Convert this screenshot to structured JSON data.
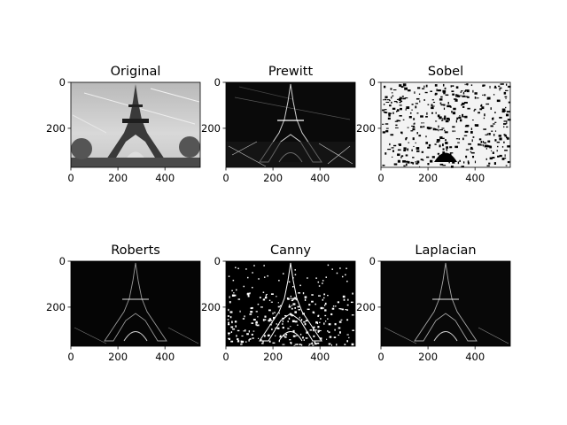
{
  "figure": {
    "background": "#ffffff",
    "axis_color": "#000000"
  },
  "chart_data": [
    {
      "type": "image",
      "title": "Original",
      "x_ticks": [
        0,
        200,
        400
      ],
      "y_ticks": [
        0,
        200
      ],
      "xlim": [
        0,
        550
      ],
      "ylim": [
        370,
        0
      ],
      "style": "grayscale-photo"
    },
    {
      "type": "image",
      "title": "Prewitt",
      "x_ticks": [
        0,
        200,
        400
      ],
      "y_ticks": [
        0,
        200
      ],
      "xlim": [
        0,
        550
      ],
      "ylim": [
        370,
        0
      ],
      "style": "dark-edges"
    },
    {
      "type": "image",
      "title": "Sobel",
      "x_ticks": [
        0,
        200,
        400
      ],
      "y_ticks": [
        0,
        200
      ],
      "xlim": [
        0,
        550
      ],
      "ylim": [
        370,
        0
      ],
      "style": "dense-white-edges"
    },
    {
      "type": "image",
      "title": "Roberts",
      "x_ticks": [
        0,
        200,
        400
      ],
      "y_ticks": [
        0,
        200
      ],
      "xlim": [
        0,
        550
      ],
      "ylim": [
        370,
        0
      ],
      "style": "dark-edges"
    },
    {
      "type": "image",
      "title": "Canny",
      "x_ticks": [
        0,
        200,
        400
      ],
      "y_ticks": [
        0,
        200
      ],
      "xlim": [
        0,
        550
      ],
      "ylim": [
        370,
        0
      ],
      "style": "binary-edges"
    },
    {
      "type": "image",
      "title": "Laplacian",
      "x_ticks": [
        0,
        200,
        400
      ],
      "y_ticks": [
        0,
        200
      ],
      "xlim": [
        0,
        550
      ],
      "ylim": [
        370,
        0
      ],
      "style": "dark-edges"
    }
  ]
}
